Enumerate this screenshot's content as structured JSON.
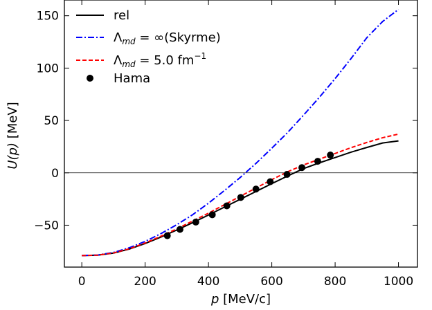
{
  "chart_data": {
    "type": "line",
    "title": "",
    "xlabel_var": "p",
    "xlabel_unit": " [MeV/c]",
    "ylabel_var": "U(p)",
    "ylabel_unit": " [MeV]",
    "xlim": [
      -55,
      1060
    ],
    "ylim": [
      -90,
      165
    ],
    "xticks": [
      0,
      200,
      400,
      600,
      800,
      1000
    ],
    "yticks": [
      -50,
      0,
      50,
      100,
      150
    ],
    "ytick_labels": [
      "−50",
      "0",
      "50",
      "100",
      "150"
    ],
    "grid": false,
    "zero_line": true,
    "legend_position": "top-left",
    "legend": {
      "rel": "rel",
      "skyrme_lambda": "Λ",
      "skyrme_sub": "md",
      "skyrme_rest": " = ∞(Skyrme)",
      "md5_lambda": "Λ",
      "md5_sub": "md",
      "md5_rest": " = 5.0 fm",
      "md5_sup": "−1",
      "hama": "Hama"
    },
    "colors": {
      "rel": "#000000",
      "skyrme": "#0000ff",
      "md5": "#ff0000",
      "hama": "#000000"
    },
    "series": [
      {
        "key": "rel",
        "style": "solid",
        "x": [
          0,
          50,
          100,
          150,
          200,
          250,
          300,
          350,
          400,
          450,
          500,
          550,
          600,
          650,
          700,
          750,
          800,
          850,
          900,
          950,
          1000
        ],
        "y": [
          -79,
          -78.6,
          -76.6,
          -72.8,
          -67.5,
          -61.3,
          -54.6,
          -47.6,
          -40.3,
          -32.8,
          -25.3,
          -17.8,
          -10.3,
          -3,
          4,
          9.5,
          14.6,
          19.7,
          24.2,
          28.5,
          30.5
        ]
      },
      {
        "key": "skyrme",
        "style": "dashdot",
        "x": [
          0,
          50,
          100,
          150,
          200,
          250,
          300,
          350,
          400,
          450,
          500,
          550,
          600,
          650,
          700,
          750,
          800,
          850,
          900,
          950,
          1000
        ],
        "y": [
          -79,
          -78.5,
          -76,
          -71.5,
          -65.5,
          -58,
          -49.5,
          -40,
          -29,
          -17,
          -4.5,
          9,
          23.5,
          38.5,
          55,
          72,
          90,
          109,
          129,
          144.5,
          156
        ]
      },
      {
        "key": "md5",
        "style": "dashed",
        "x": [
          0,
          50,
          100,
          150,
          200,
          250,
          300,
          350,
          400,
          450,
          500,
          550,
          600,
          650,
          700,
          750,
          800,
          850,
          900,
          950,
          1000
        ],
        "y": [
          -79,
          -78.6,
          -76.5,
          -72.5,
          -67,
          -60.5,
          -53.5,
          -46,
          -38.5,
          -30.5,
          -22.5,
          -14.5,
          -6.5,
          1,
          7.5,
          13,
          18.5,
          24,
          29,
          33.5,
          37
        ]
      },
      {
        "key": "hama",
        "style": "markers",
        "x": [
          270,
          310,
          360,
          412,
          458,
          502,
          550,
          595,
          648,
          695,
          745,
          785
        ],
        "y": [
          -60,
          -54,
          -47,
          -40,
          -31.5,
          -23.5,
          -15.5,
          -8.5,
          -1.5,
          5,
          11,
          17
        ]
      }
    ]
  }
}
